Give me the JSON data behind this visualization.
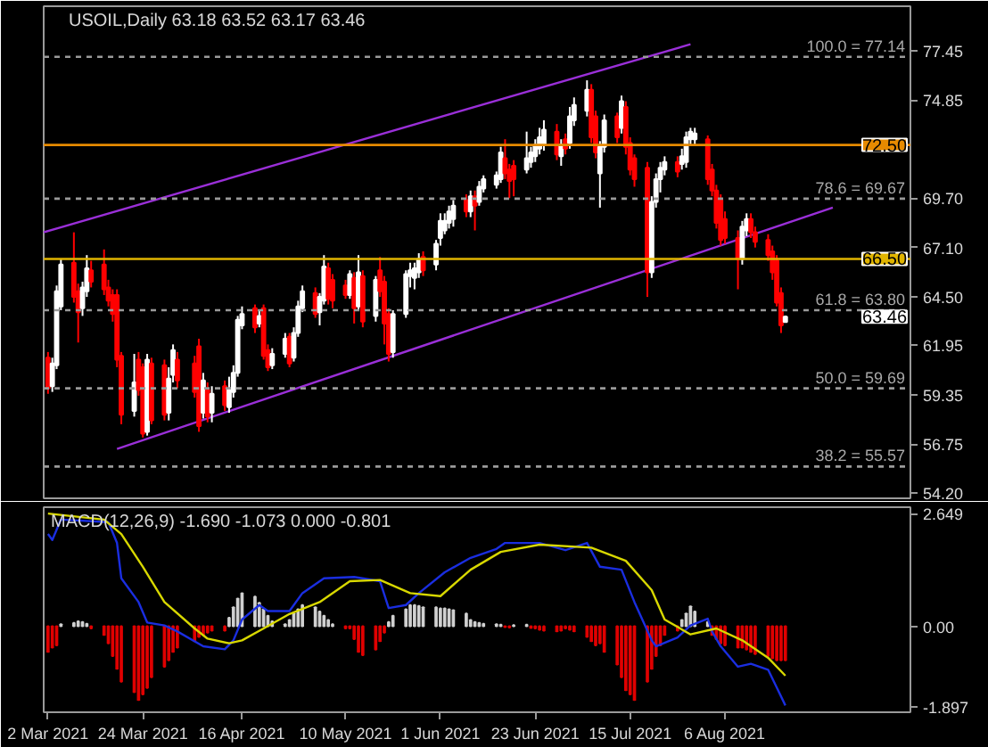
{
  "chart_data": [
    {
      "type": "candlestick",
      "title": "USOIL,Daily 63.18 63.52 63.17 63.46",
      "tick_labels": "y",
      "xlim": [
        "2021-03-01",
        "2021-09-18"
      ],
      "ylim": [
        53.9,
        79.8
      ],
      "yticks": [
        77.45,
        74.85,
        {
          "value": 69.7,
          "label": "69.70"
        },
        {
          "value": 67.1,
          "label": "67.10"
        },
        {
          "value": 64.5,
          "label": "64.50"
        },
        61.95,
        59.35,
        56.75,
        {
          "value": 54.2,
          "label": "54.20"
        }
      ],
      "x": [
        "2021-03-02",
        "2021-03-03",
        "2021-03-04",
        "2021-03-05",
        "2021-03-08",
        "2021-03-09",
        "2021-03-10",
        "2021-03-11",
        "2021-03-12",
        "2021-03-15",
        "2021-03-16",
        "2021-03-17",
        "2021-03-18",
        "2021-03-19",
        "2021-03-22",
        "2021-03-23",
        "2021-03-24",
        "2021-03-25",
        "2021-03-26",
        "2021-03-29",
        "2021-03-30",
        "2021-03-31",
        "2021-04-01",
        "2021-04-05",
        "2021-04-06",
        "2021-04-07",
        "2021-04-08",
        "2021-04-09",
        "2021-04-12",
        "2021-04-13",
        "2021-04-14",
        "2021-04-15",
        "2021-04-16",
        "2021-04-19",
        "2021-04-20",
        "2021-04-21",
        "2021-04-22",
        "2021-04-23",
        "2021-04-26",
        "2021-04-27",
        "2021-04-28",
        "2021-04-29",
        "2021-04-30",
        "2021-05-03",
        "2021-05-04",
        "2021-05-05",
        "2021-05-06",
        "2021-05-07",
        "2021-05-10",
        "2021-05-11",
        "2021-05-12",
        "2021-05-13",
        "2021-05-14",
        "2021-05-17",
        "2021-05-18",
        "2021-05-19",
        "2021-05-20",
        "2021-05-21",
        "2021-05-24",
        "2021-05-25",
        "2021-05-26",
        "2021-05-27",
        "2021-05-28",
        "2021-05-31",
        "2021-06-01",
        "2021-06-02",
        "2021-06-03",
        "2021-06-04",
        "2021-06-07",
        "2021-06-08",
        "2021-06-09",
        "2021-06-10",
        "2021-06-11",
        "2021-06-14",
        "2021-06-15",
        "2021-06-16",
        "2021-06-17",
        "2021-06-18",
        "2021-06-21",
        "2021-06-22",
        "2021-06-23",
        "2021-06-24",
        "2021-06-25",
        "2021-06-28",
        "2021-06-29",
        "2021-06-30",
        "2021-07-01",
        "2021-07-02",
        "2021-07-05",
        "2021-07-06",
        "2021-07-07",
        "2021-07-08",
        "2021-07-09",
        "2021-07-12",
        "2021-07-13",
        "2021-07-14",
        "2021-07-15",
        "2021-07-16",
        "2021-07-19",
        "2021-07-20",
        "2021-07-21",
        "2021-07-22",
        "2021-07-23",
        "2021-07-26",
        "2021-07-27",
        "2021-07-28",
        "2021-07-29",
        "2021-07-30",
        "2021-08-02",
        "2021-08-03",
        "2021-08-04",
        "2021-08-05",
        "2021-08-06",
        "2021-08-09",
        "2021-08-10",
        "2021-08-11",
        "2021-08-12",
        "2021-08-13",
        "2021-08-16",
        "2021-08-17",
        "2021-08-18",
        "2021-08-19",
        "2021-08-20"
      ],
      "ohlc": [
        [
          61.3,
          61.6,
          59.4,
          59.7
        ],
        [
          59.8,
          61.3,
          59.5,
          61.0
        ],
        [
          60.9,
          65.1,
          60.7,
          64.8
        ],
        [
          64.0,
          66.5,
          63.8,
          66.2
        ],
        [
          66.3,
          67.9,
          64.2,
          64.5
        ],
        [
          64.8,
          65.2,
          62.1,
          63.7
        ],
        [
          63.9,
          65.3,
          63.5,
          65.0
        ],
        [
          64.8,
          66.7,
          64.5,
          66.0
        ],
        [
          65.9,
          66.4,
          65.0,
          65.3
        ],
        [
          66.2,
          67.0,
          64.6,
          64.9
        ],
        [
          65.0,
          65.4,
          64.0,
          64.3
        ],
        [
          64.6,
          64.9,
          63.2,
          63.6
        ],
        [
          64.6,
          64.9,
          60.8,
          61.2
        ],
        [
          61.4,
          61.6,
          57.8,
          58.3
        ],
        [
          58.5,
          61.5,
          58.2,
          60.0
        ],
        [
          61.2,
          61.6,
          59.3,
          59.6
        ],
        [
          60.8,
          61.0,
          57.1,
          57.3
        ],
        [
          57.4,
          61.5,
          57.2,
          61.2
        ],
        [
          61.0,
          61.3,
          57.8,
          58.0
        ],
        [
          60.9,
          61.2,
          58.0,
          58.3
        ],
        [
          58.4,
          60.8,
          58.0,
          60.2
        ],
        [
          60.4,
          62.0,
          60.0,
          61.7
        ],
        [
          61.2,
          61.6,
          59.7,
          60.1
        ],
        [
          61.0,
          61.4,
          59.2,
          59.5
        ],
        [
          61.9,
          62.3,
          57.4,
          57.7
        ],
        [
          58.4,
          60.5,
          58.1,
          60.1
        ],
        [
          59.6,
          60.0,
          57.9,
          58.2
        ],
        [
          58.4,
          59.8,
          57.9,
          59.4
        ],
        [
          59.8,
          60.1,
          58.5,
          58.8
        ],
        [
          58.7,
          60.3,
          58.4,
          59.6
        ],
        [
          59.5,
          60.9,
          59.2,
          60.5
        ],
        [
          60.5,
          63.5,
          60.3,
          63.3
        ],
        [
          63.0,
          64.0,
          62.8,
          63.6
        ],
        [
          63.9,
          64.1,
          62.6,
          62.9
        ],
        [
          63.1,
          63.8,
          62.9,
          63.5
        ],
        [
          63.9,
          64.1,
          61.2,
          61.4
        ],
        [
          61.7,
          62.0,
          60.6,
          60.8
        ],
        [
          60.9,
          61.8,
          60.7,
          61.5
        ],
        [
          61.5,
          62.6,
          61.3,
          62.3
        ],
        [
          62.4,
          62.6,
          60.8,
          61.0
        ],
        [
          61.3,
          62.9,
          61.1,
          62.6
        ],
        [
          62.6,
          64.3,
          62.4,
          64.0
        ],
        [
          63.9,
          65.1,
          63.7,
          64.8
        ],
        [
          64.7,
          65.0,
          63.4,
          63.6
        ],
        [
          63.7,
          64.7,
          63.0,
          64.5
        ],
        [
          64.3,
          66.7,
          64.1,
          66.1
        ],
        [
          66.0,
          66.3,
          64.1,
          64.4
        ],
        [
          65.4,
          65.7,
          63.9,
          64.3
        ],
        [
          65.1,
          65.4,
          64.4,
          64.6
        ],
        [
          64.6,
          65.9,
          64.4,
          65.7
        ],
        [
          65.5,
          65.8,
          63.1,
          63.9
        ],
        [
          64.0,
          66.7,
          63.8,
          65.8
        ],
        [
          65.6,
          65.9,
          62.9,
          63.2
        ],
        [
          63.5,
          65.6,
          63.2,
          65.4
        ],
        [
          65.9,
          66.6,
          64.5,
          64.8
        ],
        [
          65.3,
          65.6,
          62.0,
          63.1
        ],
        [
          63.6,
          63.9,
          61.1,
          61.5
        ],
        [
          61.6,
          63.8,
          61.3,
          63.6
        ],
        [
          63.6,
          65.9,
          63.4,
          65.7
        ],
        [
          65.6,
          66.3,
          65.0,
          65.9
        ],
        [
          65.5,
          66.3,
          64.9,
          66.0
        ],
        [
          65.8,
          66.8,
          65.5,
          66.5
        ],
        [
          66.6,
          66.9,
          65.6,
          65.9
        ],
        [
          66.2,
          67.5,
          65.9,
          67.3
        ],
        [
          67.6,
          68.9,
          67.2,
          68.5
        ],
        [
          68.0,
          68.9,
          67.8,
          68.5
        ],
        [
          68.4,
          69.3,
          68.1,
          69.0
        ],
        [
          68.6,
          69.6,
          68.2,
          69.3
        ],
        [
          69.6,
          69.9,
          68.7,
          69.0
        ],
        [
          69.0,
          70.1,
          68.7,
          69.8
        ],
        [
          69.8,
          70.1,
          68.0,
          69.3
        ],
        [
          69.5,
          70.6,
          69.3,
          70.3
        ],
        [
          70.2,
          70.9,
          70.0,
          70.7
        ],
        [
          70.4,
          71.1,
          70.2,
          70.9
        ],
        [
          70.7,
          72.4,
          70.5,
          72.1
        ],
        [
          71.8,
          72.8,
          70.7,
          71.0
        ],
        [
          71.2,
          71.5,
          69.7,
          70.6
        ],
        [
          71.4,
          71.7,
          69.8,
          70.7
        ],
        [
          71.2,
          73.2,
          71.0,
          71.8
        ],
        [
          71.6,
          72.4,
          71.3,
          72.1
        ],
        [
          71.9,
          72.8,
          71.6,
          72.5
        ],
        [
          72.3,
          73.4,
          72.0,
          72.9
        ],
        [
          72.5,
          73.8,
          72.2,
          73.3
        ],
        [
          73.2,
          73.6,
          71.7,
          72.0
        ],
        [
          71.9,
          72.8,
          71.4,
          72.5
        ],
        [
          72.8,
          73.1,
          72.0,
          72.3
        ],
        [
          72.6,
          74.5,
          72.3,
          74.0
        ],
        [
          73.8,
          75.0,
          73.5,
          74.6
        ],
        [
          74.3,
          75.9,
          74.0,
          75.4
        ],
        [
          75.4,
          75.7,
          72.6,
          72.9
        ],
        [
          74.0,
          74.3,
          71.8,
          72.1
        ],
        [
          71.0,
          72.7,
          69.2,
          72.4
        ],
        [
          72.4,
          74.1,
          72.1,
          73.8
        ],
        [
          74.0,
          74.2,
          72.6,
          72.9
        ],
        [
          73.4,
          75.1,
          73.1,
          74.8
        ],
        [
          74.5,
          74.8,
          72.0,
          72.4
        ],
        [
          72.6,
          72.9,
          70.9,
          71.2
        ],
        [
          71.8,
          72.0,
          70.3,
          70.7
        ],
        [
          71.3,
          71.6,
          64.5,
          65.8
        ],
        [
          65.8,
          69.8,
          65.5,
          69.5
        ],
        [
          69.5,
          71.0,
          69.2,
          70.7
        ],
        [
          70.7,
          71.6,
          70.0,
          71.3
        ],
        [
          71.2,
          71.9,
          70.9,
          71.6
        ],
        [
          71.6,
          71.9,
          70.8,
          71.1
        ],
        [
          71.5,
          72.3,
          71.2,
          71.9
        ],
        [
          71.6,
          73.2,
          71.3,
          72.9
        ],
        [
          72.8,
          73.4,
          72.5,
          73.2
        ],
        [
          72.8,
          73.4,
          72.5,
          73.1
        ],
        [
          72.8,
          73.0,
          70.4,
          70.7
        ],
        [
          71.2,
          71.5,
          69.8,
          70.1
        ],
        [
          70.1,
          70.4,
          68.1,
          68.4
        ],
        [
          69.6,
          69.9,
          67.2,
          67.5
        ],
        [
          68.6,
          69.0,
          67.3,
          67.6
        ],
        [
          67.6,
          68.0,
          64.9,
          66.5
        ],
        [
          66.5,
          68.5,
          66.2,
          68.2
        ],
        [
          68.0,
          68.9,
          67.7,
          68.6
        ],
        [
          68.6,
          68.9,
          67.6,
          67.9
        ],
        [
          67.9,
          68.2,
          67.1,
          67.4
        ],
        [
          67.5,
          67.8,
          66.4,
          66.7
        ],
        [
          66.9,
          67.2,
          65.4,
          65.8
        ],
        [
          66.4,
          66.7,
          64.0,
          64.2
        ],
        [
          64.7,
          65.0,
          62.6,
          63.0
        ],
        [
          63.18,
          63.52,
          63.17,
          63.46
        ]
      ],
      "series": [
        {
          "type": "line",
          "color": "#9a2fd8",
          "x": [
            "2021-03-01",
            "2021-07-29"
          ],
          "values": [
            67.9,
            77.8
          ]
        },
        {
          "type": "line",
          "color": "#9a2fd8",
          "x": [
            "2021-03-18",
            "2021-08-31"
          ],
          "values": [
            56.5,
            69.2
          ]
        }
      ],
      "ref_lines": [
        {
          "axis": "y",
          "value": 77.14,
          "label": "100.0 = 77.14",
          "color": "#9a9a9a",
          "line_style": "dashed"
        },
        {
          "axis": "y",
          "value": 69.67,
          "label": "78.6 = 69.67",
          "color": "#9a9a9a",
          "line_style": "dashed"
        },
        {
          "axis": "y",
          "value": 63.8,
          "label": "61.8 = 63.80",
          "color": "#9a9a9a",
          "line_style": "dashed"
        },
        {
          "axis": "y",
          "value": 59.69,
          "label": "50.0 = 59.69",
          "color": "#9a9a9a",
          "line_style": "dashed"
        },
        {
          "axis": "y",
          "value": 55.57,
          "label": "38.2 = 55.57",
          "color": "#9a9a9a",
          "line_style": "dashed"
        },
        {
          "axis": "y",
          "value": 72.5,
          "label": "72.50",
          "color": "#e68a00",
          "line_style": "solid"
        },
        {
          "axis": "y",
          "value": 66.5,
          "label": "66.50",
          "color": "#e0b400",
          "line_style": "solid"
        }
      ],
      "annotations": [
        "63.46"
      ]
    },
    {
      "type": "bar",
      "title": "MACD(12,26,9) -1.690 -1.073 0.000 -0.801",
      "xlim": [
        "2021-03-01",
        "2021-09-18"
      ],
      "ylim": [
        -2.02,
        2.8
      ],
      "xticks": [
        {
          "value": "2021-03-02",
          "label": "2 Mar 2021"
        },
        {
          "value": "2021-03-24",
          "label": "24 Mar 2021"
        },
        {
          "value": "2021-04-16",
          "label": "16 Apr 2021"
        },
        {
          "value": "2021-05-10",
          "label": "10 May 2021"
        },
        {
          "value": "2021-06-01",
          "label": "1 Jun 2021"
        },
        {
          "value": "2021-06-23",
          "label": "23 Jun 2021"
        },
        {
          "value": "2021-07-15",
          "label": "15 Jul 2021"
        },
        {
          "value": "2021-08-06",
          "label": "6 Aug 2021"
        }
      ],
      "yticks": [
        2.649,
        {
          "value": 0,
          "label": "0.00"
        },
        -1.897
      ],
      "x": [
        "2021-03-02",
        "2021-03-03",
        "2021-03-04",
        "2021-03-05",
        "2021-03-08",
        "2021-03-09",
        "2021-03-10",
        "2021-03-11",
        "2021-03-12",
        "2021-03-15",
        "2021-03-16",
        "2021-03-17",
        "2021-03-18",
        "2021-03-19",
        "2021-03-22",
        "2021-03-23",
        "2021-03-24",
        "2021-03-25",
        "2021-03-26",
        "2021-03-29",
        "2021-03-30",
        "2021-03-31",
        "2021-04-01",
        "2021-04-05",
        "2021-04-06",
        "2021-04-07",
        "2021-04-08",
        "2021-04-09",
        "2021-04-12",
        "2021-04-13",
        "2021-04-14",
        "2021-04-15",
        "2021-04-16",
        "2021-04-19",
        "2021-04-20",
        "2021-04-21",
        "2021-04-22",
        "2021-04-23",
        "2021-04-26",
        "2021-04-27",
        "2021-04-28",
        "2021-04-29",
        "2021-04-30",
        "2021-05-03",
        "2021-05-04",
        "2021-05-05",
        "2021-05-06",
        "2021-05-07",
        "2021-05-10",
        "2021-05-11",
        "2021-05-12",
        "2021-05-13",
        "2021-05-14",
        "2021-05-17",
        "2021-05-18",
        "2021-05-19",
        "2021-05-20",
        "2021-05-21",
        "2021-05-24",
        "2021-05-25",
        "2021-05-26",
        "2021-05-27",
        "2021-05-28",
        "2021-05-31",
        "2021-06-01",
        "2021-06-02",
        "2021-06-03",
        "2021-06-04",
        "2021-06-07",
        "2021-06-08",
        "2021-06-09",
        "2021-06-10",
        "2021-06-11",
        "2021-06-14",
        "2021-06-15",
        "2021-06-16",
        "2021-06-17",
        "2021-06-18",
        "2021-06-21",
        "2021-06-22",
        "2021-06-23",
        "2021-06-24",
        "2021-06-25",
        "2021-06-28",
        "2021-06-29",
        "2021-06-30",
        "2021-07-01",
        "2021-07-02",
        "2021-07-05",
        "2021-07-06",
        "2021-07-07",
        "2021-07-08",
        "2021-07-09",
        "2021-07-12",
        "2021-07-13",
        "2021-07-14",
        "2021-07-15",
        "2021-07-16",
        "2021-07-19",
        "2021-07-20",
        "2021-07-21",
        "2021-07-22",
        "2021-07-23",
        "2021-07-26",
        "2021-07-27",
        "2021-07-28",
        "2021-07-29",
        "2021-07-30",
        "2021-08-02",
        "2021-08-03",
        "2021-08-04",
        "2021-08-05",
        "2021-08-06",
        "2021-08-09",
        "2021-08-10",
        "2021-08-11",
        "2021-08-12",
        "2021-08-13",
        "2021-08-16",
        "2021-08-17",
        "2021-08-18",
        "2021-08-19",
        "2021-08-20"
      ],
      "series": [
        {
          "type": "bar",
          "values": [
            -0.6,
            -0.5,
            -0.45,
            0.05,
            0.08,
            0.12,
            0.1,
            0.06,
            -0.05,
            -0.2,
            -0.4,
            -0.7,
            -1.0,
            -1.3,
            -1.55,
            -1.73,
            -1.6,
            -1.45,
            -1.2,
            -0.95,
            -0.8,
            -0.6,
            -0.5,
            -0.35,
            -0.25,
            -0.2,
            -0.15,
            -0.1,
            -0.1,
            0.2,
            0.45,
            0.65,
            0.78,
            0.7,
            0.55,
            0.4,
            0.25,
            0.12,
            0.05,
            0.15,
            0.3,
            0.4,
            0.5,
            0.45,
            0.35,
            0.25,
            0.15,
            0.05,
            -0.05,
            -0.05,
            -0.3,
            -0.6,
            -0.68,
            -0.55,
            -0.35,
            -0.15,
            0.1,
            0.25,
            0.4,
            0.5,
            0.5,
            0.48,
            0.45,
            0.45,
            0.42,
            0.42,
            0.4,
            0.38,
            0.3,
            0.15,
            0.1,
            0.08,
            0.06,
            0.05,
            0.04,
            -0.02,
            -0.03,
            0.03,
            0.04,
            -0.04,
            -0.05,
            -0.08,
            -0.1,
            -0.12,
            -0.1,
            -0.05,
            -0.08,
            -0.12,
            -0.25,
            -0.35,
            -0.45,
            -0.4,
            -0.6,
            -0.9,
            -1.2,
            -1.5,
            -1.6,
            -1.73,
            -1.3,
            -1.0,
            -0.7,
            -0.45,
            -0.2,
            -0.1,
            0.15,
            0.3,
            0.47,
            0.35,
            0.1,
            -0.2,
            -0.3,
            -0.4,
            -0.45,
            -0.5,
            -0.5,
            -0.55,
            -0.6,
            -0.65,
            -0.7,
            -0.75,
            -0.8,
            -0.8,
            -0.8
          ],
          "colors": [
            "#e00000",
            "#e00000",
            "#e00000",
            "#d0d0d0",
            "#d0d0d0",
            "#d0d0d0",
            "#d0d0d0",
            "#d0d0d0",
            "#e00000",
            "#e00000",
            "#e00000",
            "#e00000",
            "#e00000",
            "#e00000",
            "#e00000",
            "#e00000",
            "#e00000",
            "#e00000",
            "#e00000",
            "#e00000",
            "#e00000",
            "#e00000",
            "#e00000",
            "#e00000",
            "#e00000",
            "#e00000",
            "#e00000",
            "#e00000",
            "#e00000",
            "#d0d0d0",
            "#d0d0d0",
            "#d0d0d0",
            "#d0d0d0",
            "#d0d0d0",
            "#d0d0d0",
            "#d0d0d0",
            "#d0d0d0",
            "#d0d0d0",
            "#d0d0d0",
            "#d0d0d0",
            "#d0d0d0",
            "#d0d0d0",
            "#d0d0d0",
            "#d0d0d0",
            "#d0d0d0",
            "#d0d0d0",
            "#d0d0d0",
            "#d0d0d0",
            "#e00000",
            "#e00000",
            "#e00000",
            "#e00000",
            "#e00000",
            "#e00000",
            "#e00000",
            "#e00000",
            "#d0d0d0",
            "#d0d0d0",
            "#d0d0d0",
            "#d0d0d0",
            "#d0d0d0",
            "#d0d0d0",
            "#d0d0d0",
            "#d0d0d0",
            "#d0d0d0",
            "#d0d0d0",
            "#d0d0d0",
            "#d0d0d0",
            "#d0d0d0",
            "#d0d0d0",
            "#d0d0d0",
            "#d0d0d0",
            "#d0d0d0",
            "#d0d0d0",
            "#d0d0d0",
            "#e00000",
            "#e00000",
            "#d0d0d0",
            "#d0d0d0",
            "#e00000",
            "#e00000",
            "#e00000",
            "#e00000",
            "#e00000",
            "#e00000",
            "#e00000",
            "#e00000",
            "#e00000",
            "#e00000",
            "#e00000",
            "#e00000",
            "#e00000",
            "#e00000",
            "#e00000",
            "#e00000",
            "#e00000",
            "#e00000",
            "#e00000",
            "#e00000",
            "#e00000",
            "#e00000",
            "#e00000",
            "#e00000",
            "#e00000",
            "#d0d0d0",
            "#d0d0d0",
            "#d0d0d0",
            "#d0d0d0",
            "#d0d0d0",
            "#e00000",
            "#e00000",
            "#e00000",
            "#e00000",
            "#e00000",
            "#e00000",
            "#e00000",
            "#e00000",
            "#e00000",
            "#e00000",
            "#e00000",
            "#e00000",
            "#e00000",
            "#e00000"
          ]
        },
        {
          "type": "line",
          "color": "#1a2ee0",
          "x": [
            "2021-03-02",
            "2021-03-03",
            "2021-03-05",
            "2021-03-16",
            "2021-03-18",
            "2021-03-19",
            "2021-03-23",
            "2021-03-25",
            "2021-03-29",
            "2021-04-01",
            "2021-04-07",
            "2021-04-12",
            "2021-04-14",
            "2021-04-16",
            "2021-04-20",
            "2021-04-22",
            "2021-04-27",
            "2021-04-30",
            "2021-05-05",
            "2021-05-12",
            "2021-05-18",
            "2021-05-20",
            "2021-05-24",
            "2021-05-27",
            "2021-06-02",
            "2021-06-08",
            "2021-06-14",
            "2021-06-16",
            "2021-06-24",
            "2021-06-30",
            "2021-07-05",
            "2021-07-08",
            "2021-07-13",
            "2021-07-16",
            "2021-07-20",
            "2021-07-21",
            "2021-07-26",
            "2021-07-29",
            "2021-08-02",
            "2021-08-03",
            "2021-08-05",
            "2021-08-09",
            "2021-08-12",
            "2021-08-16",
            "2021-08-18",
            "2021-08-20"
          ],
          "values": [
            2.17,
            2.03,
            2.51,
            2.45,
            1.96,
            1.13,
            0.57,
            0.09,
            0.02,
            -0.12,
            -0.47,
            -0.54,
            -0.33,
            0.16,
            0.5,
            0.36,
            0.36,
            0.78,
            1.13,
            1.16,
            1.06,
            0.43,
            0.5,
            0.78,
            1.27,
            1.61,
            1.82,
            1.96,
            1.96,
            1.79,
            1.96,
            1.4,
            1.33,
            0.57,
            -0.33,
            -0.47,
            -0.26,
            0.02,
            0.18,
            -0.12,
            -0.47,
            -0.95,
            -0.88,
            -1.02,
            -1.44,
            -1.86
          ]
        },
        {
          "type": "line",
          "color": "#d8d800",
          "x": [
            "2021-03-02",
            "2021-03-15",
            "2021-03-19",
            "2021-03-24",
            "2021-03-29",
            "2021-04-05",
            "2021-04-08",
            "2021-04-13",
            "2021-04-16",
            "2021-04-21",
            "2021-04-27",
            "2021-05-04",
            "2021-05-11",
            "2021-05-18",
            "2021-05-25",
            "2021-06-01",
            "2021-06-08",
            "2021-06-15",
            "2021-06-24",
            "2021-07-06",
            "2021-07-14",
            "2021-07-20",
            "2021-07-23",
            "2021-07-29",
            "2021-08-04",
            "2021-08-10",
            "2021-08-16",
            "2021-08-20"
          ],
          "values": [
            2.65,
            2.51,
            2.17,
            1.4,
            0.57,
            -0.05,
            -0.29,
            -0.4,
            -0.33,
            -0.05,
            0.29,
            0.57,
            1.06,
            1.09,
            0.78,
            0.71,
            1.33,
            1.75,
            1.92,
            1.85,
            1.54,
            0.85,
            0.16,
            -0.19,
            -0.05,
            -0.33,
            -0.74,
            -1.16
          ]
        }
      ]
    }
  ]
}
